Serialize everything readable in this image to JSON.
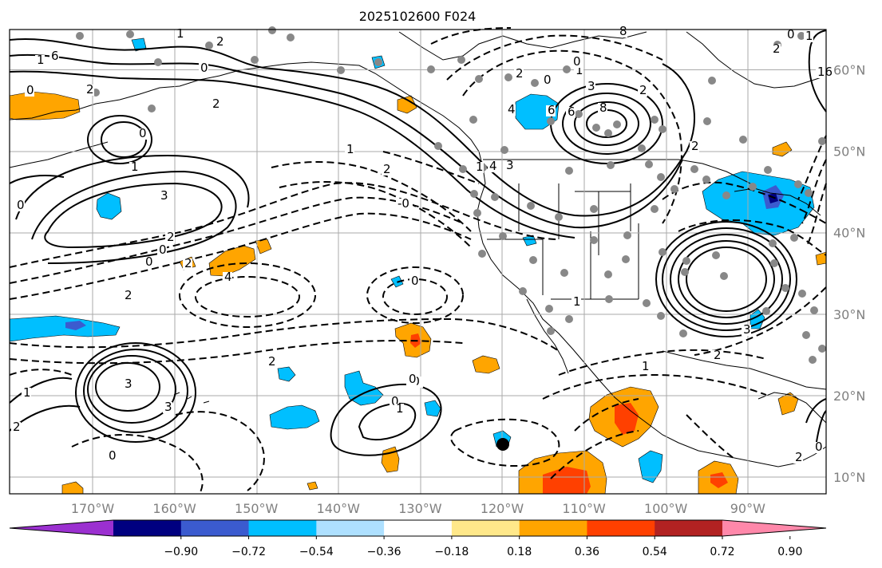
{
  "title": "2025102600 F024",
  "lat_labels": [
    "60°N",
    "50°N",
    "40°N",
    "30°N",
    "20°N",
    "10°N"
  ],
  "lat_values": [
    60,
    50,
    40,
    30,
    20,
    10
  ],
  "lon_labels": [
    "170°W",
    "160°W",
    "150°W",
    "140°W",
    "130°W",
    "120°W",
    "110°W",
    "100°W",
    "90°W"
  ],
  "lon_values": [
    -170,
    -160,
    -150,
    -140,
    -130,
    -120,
    -110,
    -100,
    -90
  ],
  "colorbar": {
    "ticks": [
      "−0.90",
      "−0.72",
      "−0.54",
      "−0.36",
      "−0.18",
      "0.18",
      "0.36",
      "0.54",
      "0.72",
      "0.90"
    ],
    "colors": [
      "#9b30d0",
      "#000080",
      "#3b5bcf",
      "#00bfff",
      "#aee0ff",
      "#ffffff",
      "#ffe88a",
      "#ffa500",
      "#ff4000",
      "#b22222",
      "#ff88aa"
    ]
  },
  "contour_labels": [
    "2",
    "1",
    "6",
    "4",
    "0",
    "2",
    "8",
    "6",
    "3",
    "2",
    "8",
    "2",
    "0",
    "1",
    "2",
    "0",
    "3",
    "1",
    "0",
    "4",
    "1",
    "2",
    "3",
    "1",
    "2",
    "2",
    "-0",
    "0",
    "0",
    "2",
    "3",
    "2",
    "1",
    "0",
    "4",
    "2",
    "0",
    "-0",
    "0",
    "1",
    "1",
    "2",
    "2",
    "3",
    "2",
    "0",
    "0",
    "1",
    "0",
    "1",
    "2",
    "1",
    "0",
    "3",
    "4",
    "6",
    "0",
    "16"
  ]
}
